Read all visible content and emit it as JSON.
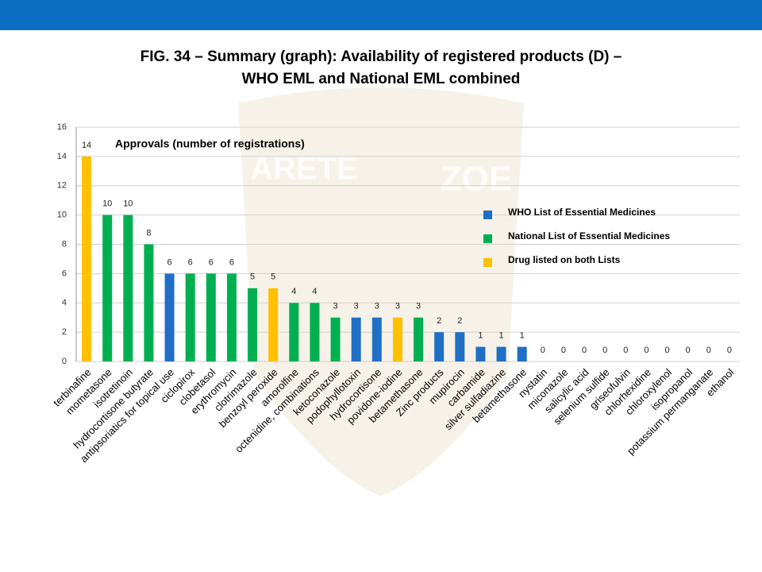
{
  "chart_data": {
    "type": "bar",
    "title": [
      "FIG. 34 – Summary (graph): Availability of registered products (D) –",
      "WHO EML and National EML combined"
    ],
    "subtitle": "Approvals (number of registrations)",
    "watermark": [
      "ARETE",
      "ZOE"
    ],
    "categories": [
      "terbinafine",
      "mometasone",
      "isotretinoin",
      "hydrocortisone butyrate",
      "antipsoriatics for topical use",
      "ciclopirox",
      "clobetasol",
      "erythromycin",
      "clotrimazole",
      "benzoyl peroxide",
      "amorolfine",
      "octenidine, combinations",
      "ketoconazole",
      "podophyllotoxin",
      "hydrocortisone",
      "povidone-iodine",
      "betamethasone",
      "Zinc products",
      "mupirocin",
      "carbamide",
      "silver sulfadiazine",
      "betamethasone",
      "nystatin",
      "miconazole",
      "salicylic acid",
      "selenium sulfide",
      "griseofulvin",
      "chlorhexidine",
      "chloroxylenol",
      "isopropanol",
      "potassium permanganate",
      "ethanol"
    ],
    "values": [
      14,
      10,
      10,
      8,
      6,
      6,
      6,
      6,
      5,
      5,
      4,
      4,
      3,
      3,
      3,
      3,
      3,
      2,
      2,
      1,
      1,
      1,
      0,
      0,
      0,
      0,
      0,
      0,
      0,
      0,
      0,
      0
    ],
    "colors": [
      "#ffc000",
      "#00b050",
      "#00b050",
      "#00b050",
      "#1f6fc4",
      "#00b050",
      "#00b050",
      "#00b050",
      "#00b050",
      "#ffc000",
      "#00b050",
      "#00b050",
      "#00b050",
      "#1f6fc4",
      "#1f6fc4",
      "#ffc000",
      "#00b050",
      "#1f6fc4",
      "#1f6fc4",
      "#1f6fc4",
      "#1f6fc4",
      "#1f6fc4",
      "#1f6fc4",
      "#1f6fc4",
      "#1f6fc4",
      "#1f6fc4",
      "#1f6fc4",
      "#1f6fc4",
      "#1f6fc4",
      "#1f6fc4",
      "#1f6fc4",
      "#1f6fc4"
    ],
    "legend": [
      {
        "name": "WHO List of Essential Medicines",
        "color": "#1f6fc4"
      },
      {
        "name": "National List of Essential Medicines",
        "color": "#00b050"
      },
      {
        "name": "Drug listed on both Lists",
        "color": "#ffc000"
      }
    ],
    "ylim": [
      0,
      16
    ],
    "yticks": [
      0,
      2,
      4,
      6,
      8,
      10,
      12,
      14,
      16
    ],
    "grid": true
  }
}
